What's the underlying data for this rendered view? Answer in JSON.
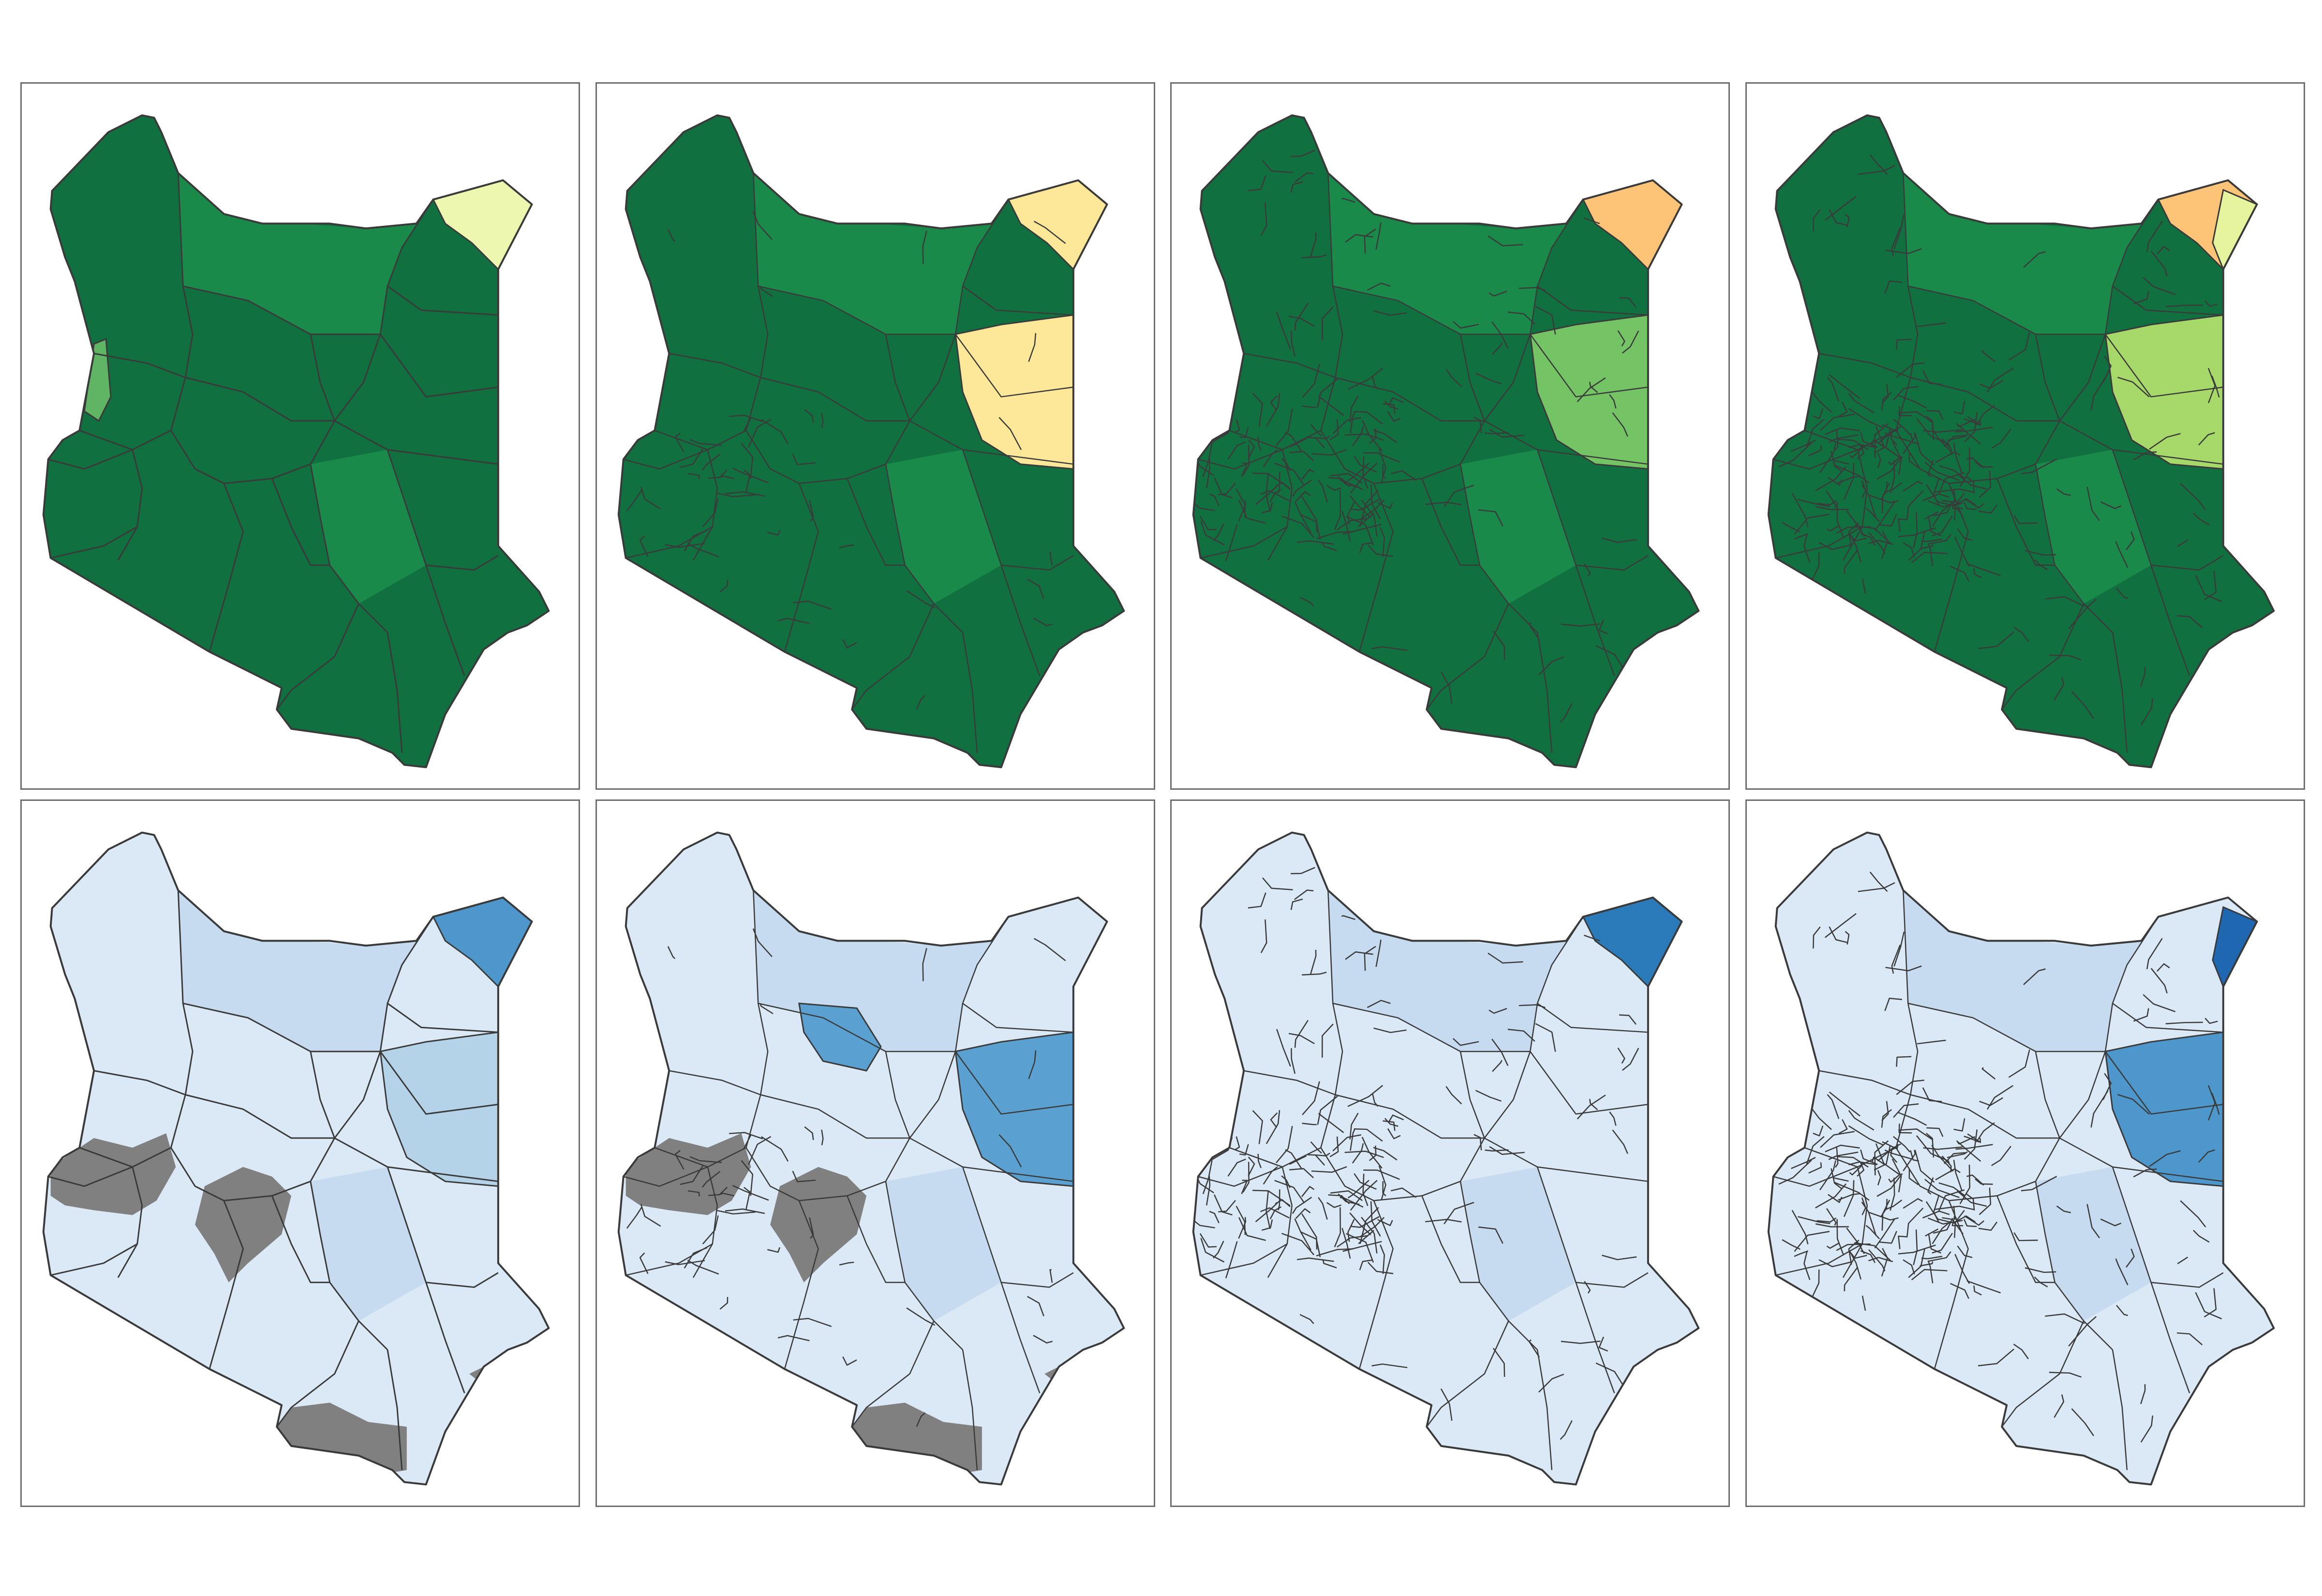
{
  "figure": {
    "rows": 2,
    "cols": 4,
    "panels": [
      {
        "row": 1,
        "col": 1,
        "scheme": "green",
        "level": "county-coarse",
        "highlights": [
          {
            "zone": "ne-corner",
            "color": "#eef7b0"
          },
          {
            "zone": "west-strip",
            "color": "#5fb563"
          }
        ]
      },
      {
        "row": 1,
        "col": 2,
        "scheme": "green",
        "level": "county",
        "highlights": [
          {
            "zone": "ne-corner",
            "color": "#fde89a"
          },
          {
            "zone": "east-mid",
            "color": "#fde89a"
          }
        ]
      },
      {
        "row": 1,
        "col": 3,
        "scheme": "green",
        "level": "subcounty",
        "highlights": [
          {
            "zone": "ne-tip",
            "color": "#a50026"
          },
          {
            "zone": "ne-corner",
            "color": "#fdc478"
          },
          {
            "zone": "east-mid",
            "color": "#74c364"
          }
        ]
      },
      {
        "row": 1,
        "col": 4,
        "scheme": "green",
        "level": "ward",
        "highlights": [
          {
            "zone": "ne-corner",
            "color": "#fdc478"
          },
          {
            "zone": "ne-tip",
            "color": "#e6f59d"
          },
          {
            "zone": "east-mid",
            "color": "#a6d96a"
          }
        ]
      },
      {
        "row": 2,
        "col": 1,
        "scheme": "blue",
        "level": "county-coarse",
        "missing_color": "#808080",
        "highlights": [
          {
            "zone": "ne-corner",
            "color": "#4e97cc"
          },
          {
            "zone": "east-mid",
            "color": "#b4d3e9"
          }
        ]
      },
      {
        "row": 2,
        "col": 2,
        "scheme": "blue",
        "level": "county",
        "missing_color": "#808080",
        "highlights": [
          {
            "zone": "east-mid",
            "color": "#5aa1d1"
          },
          {
            "zone": "center-north",
            "color": "#5aa1d1"
          }
        ]
      },
      {
        "row": 2,
        "col": 3,
        "scheme": "blue",
        "level": "subcounty",
        "highlights": [
          {
            "zone": "ne-tip",
            "color": "#08306b"
          },
          {
            "zone": "ne-corner",
            "color": "#2b7bba"
          }
        ]
      },
      {
        "row": 2,
        "col": 4,
        "scheme": "blue",
        "level": "ward",
        "highlights": [
          {
            "zone": "ne-tip",
            "color": "#1f67b0"
          },
          {
            "zone": "east-mid",
            "color": "#4e97cc"
          }
        ]
      }
    ],
    "colors": {
      "green_base": "#10703f",
      "green_alt": "#1a8a4a",
      "blue_base": "#dbe9f6",
      "blue_alt": "#c6dbef",
      "outline": "#3a3a3a",
      "frame": "#6e6e6e"
    }
  }
}
